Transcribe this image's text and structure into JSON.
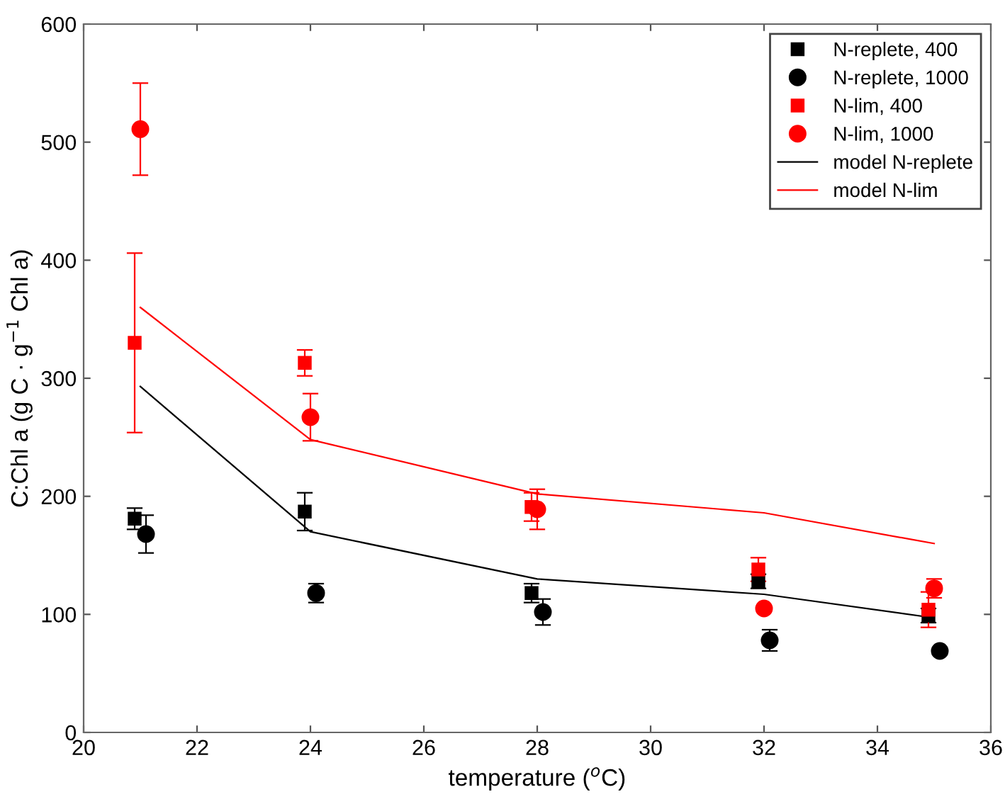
{
  "chart_data": {
    "type": "scatter",
    "xlabel": "temperature ($^{o}$C)",
    "ylabel": "C:Chl a (g C · g$^{−1}$ Chl a)",
    "xlim": [
      20,
      36
    ],
    "xticks": [
      20,
      22,
      24,
      26,
      28,
      30,
      32,
      34,
      36
    ],
    "ylim": [
      0,
      600
    ],
    "yticks": [
      0,
      100,
      200,
      300,
      400,
      500,
      600
    ],
    "grid": false,
    "legend": "top right",
    "series": [
      {
        "name": "N-replete, 400",
        "marker": "square",
        "color": "#000000",
        "x": [
          20.9,
          23.9,
          27.9,
          31.9,
          34.9
        ],
        "values": [
          181,
          187,
          118,
          128,
          99
        ],
        "errors": [
          9,
          16,
          8,
          6,
          6
        ]
      },
      {
        "name": "N-replete, 1000",
        "marker": "circle",
        "color": "#000000",
        "x": [
          21.1,
          24.1,
          28.1,
          32.1,
          35.1
        ],
        "values": [
          168,
          118,
          102,
          78,
          69
        ],
        "errors": [
          16,
          8,
          11,
          9,
          3
        ]
      },
      {
        "name": "N-lim, 400",
        "marker": "square",
        "color": "#ff0000",
        "x": [
          20.9,
          23.9,
          27.9,
          31.9,
          34.9
        ],
        "values": [
          330,
          313,
          191,
          138,
          104
        ],
        "errors": [
          76,
          11,
          12,
          10,
          15
        ]
      },
      {
        "name": "N-lim, 1000",
        "marker": "circle",
        "color": "#ff0000",
        "x": [
          21.0,
          24.0,
          28.0,
          32.0,
          35.0
        ],
        "values": [
          511,
          267,
          189,
          105,
          122
        ],
        "errors": [
          39,
          20,
          17,
          null,
          8
        ]
      },
      {
        "name": "model N-replete",
        "type": "line",
        "marker": "none",
        "color": "#000000",
        "x": [
          21,
          24,
          28,
          32,
          35
        ],
        "values": [
          293,
          170,
          130,
          117,
          97
        ]
      },
      {
        "name": "model N-lim",
        "type": "line",
        "marker": "none",
        "color": "#ff0000",
        "x": [
          21,
          24,
          28,
          32,
          35
        ],
        "values": [
          360,
          248,
          202,
          186,
          160
        ]
      }
    ]
  }
}
